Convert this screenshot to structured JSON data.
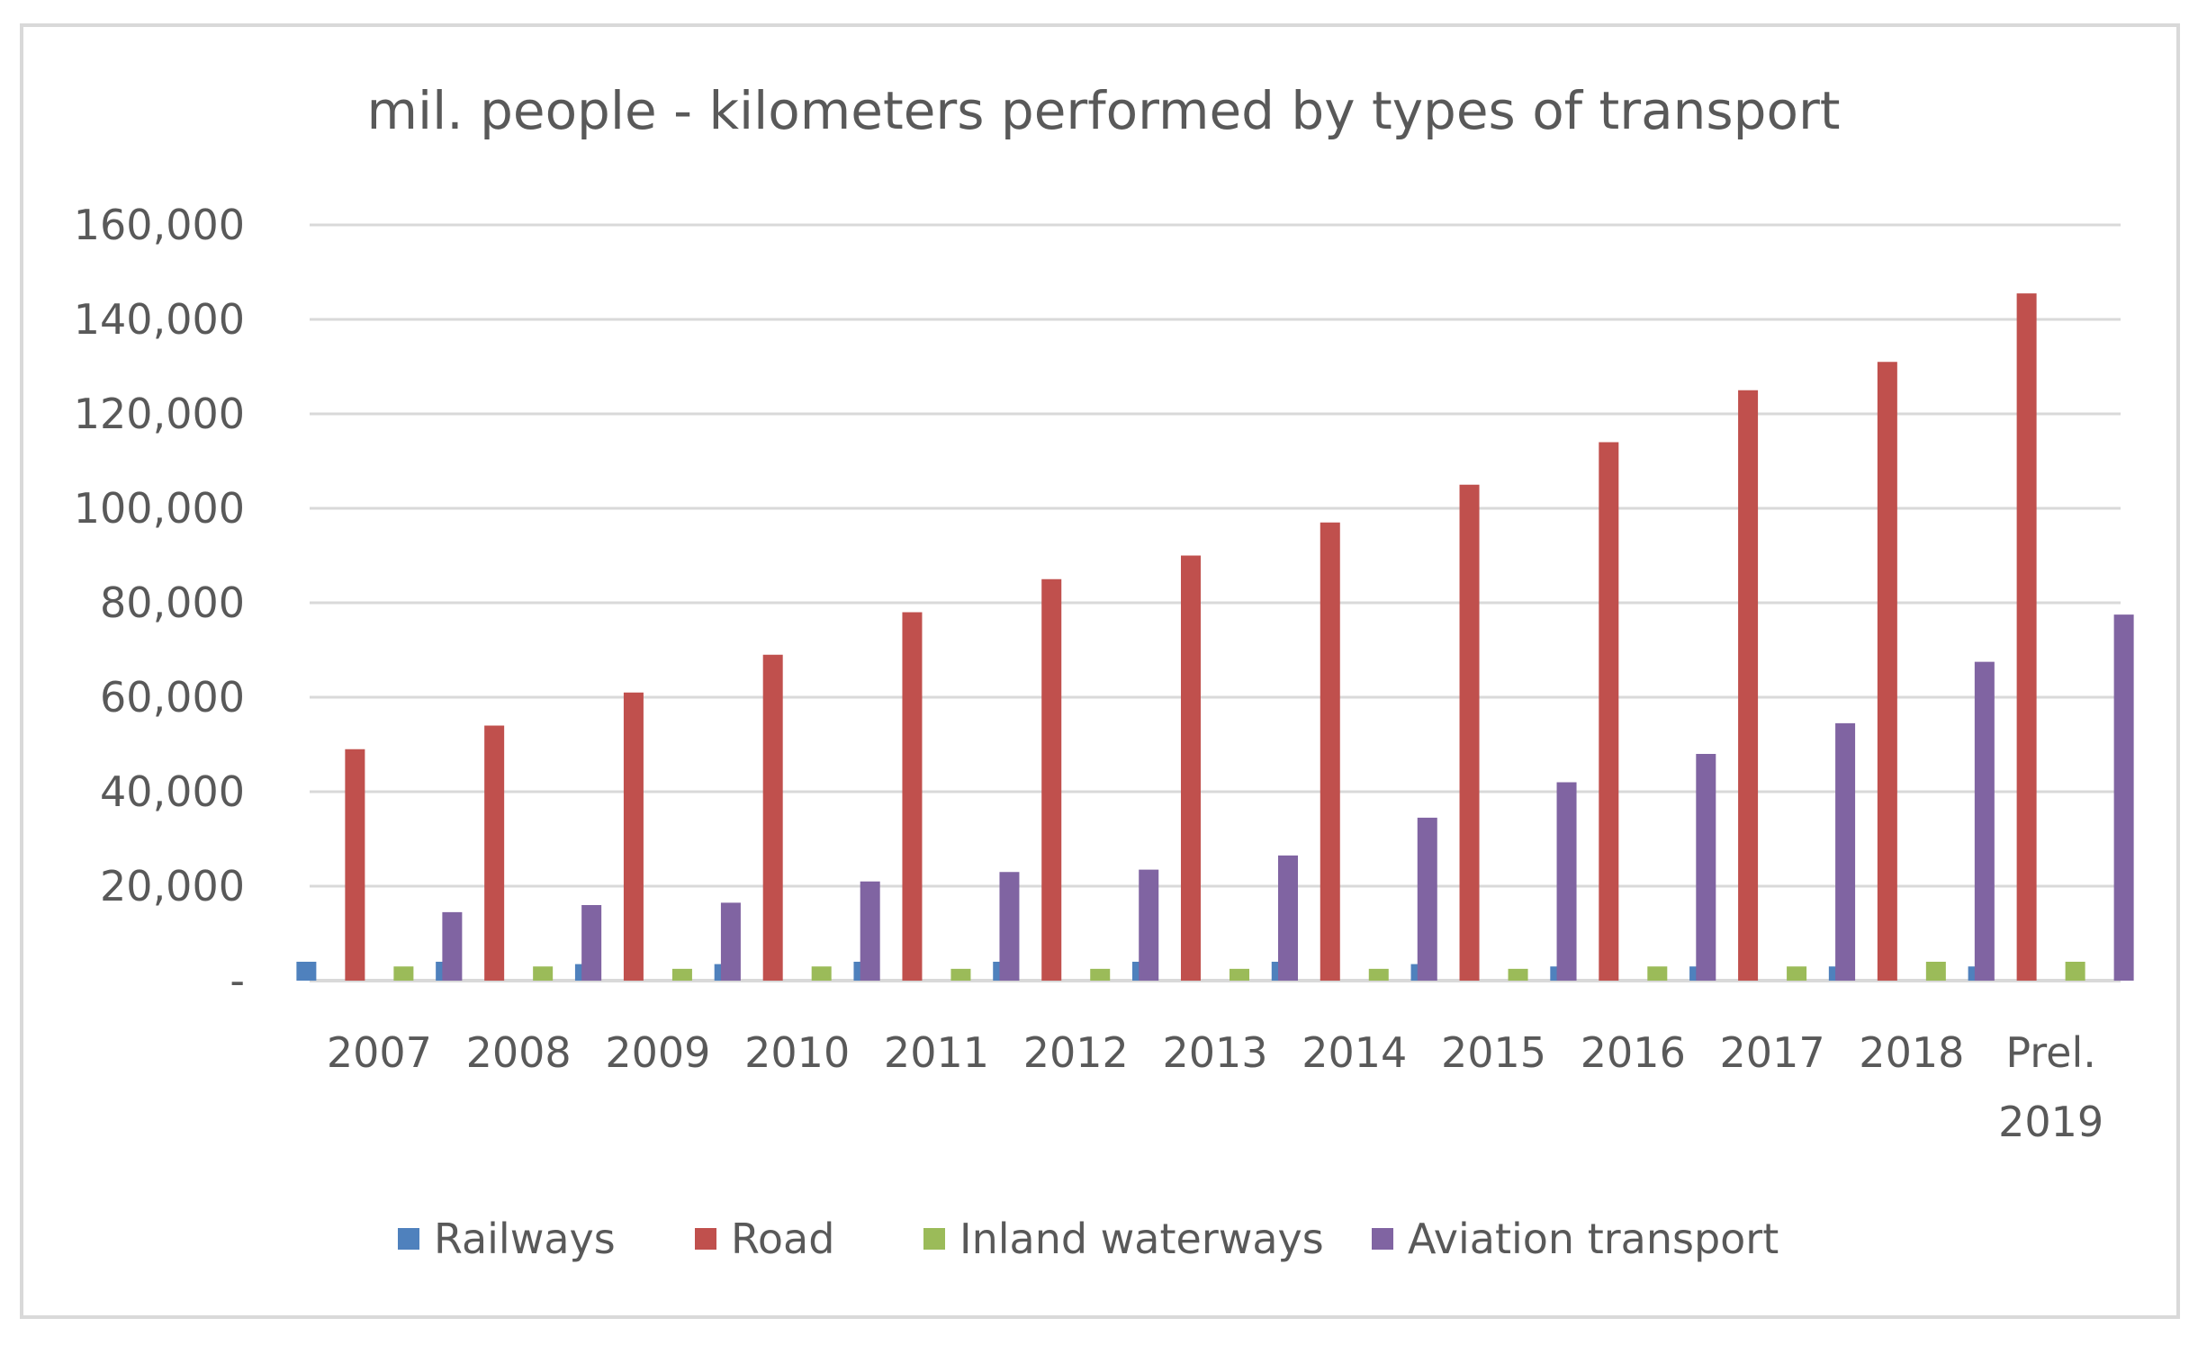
{
  "chart_data": {
    "type": "bar",
    "title": "mil. people - kilometers performed by types of transport",
    "xlabel": "",
    "ylabel": "",
    "ylim": [
      0,
      160000
    ],
    "yticks": [
      0,
      20000,
      40000,
      60000,
      80000,
      100000,
      120000,
      140000,
      160000
    ],
    "ytick_labels": [
      "-",
      "20,000",
      "40,000",
      "60,000",
      "80,000",
      "100,000",
      "120,000",
      "140,000",
      "160,000"
    ],
    "grid": true,
    "legend_position": "bottom",
    "categories": [
      [
        "2007"
      ],
      [
        "2008"
      ],
      [
        "2009"
      ],
      [
        "2010"
      ],
      [
        "2011"
      ],
      [
        "2012"
      ],
      [
        "2013"
      ],
      [
        "2014"
      ],
      [
        "2015"
      ],
      [
        "2016"
      ],
      [
        "2017"
      ],
      [
        "2018"
      ],
      [
        "Prel.",
        "2019"
      ]
    ],
    "series": [
      {
        "name": "Railways",
        "color": "#4f81bd",
        "values": [
          4000,
          4000,
          3500,
          3500,
          4000,
          4000,
          4000,
          4000,
          3500,
          3000,
          3000,
          3000,
          3000
        ]
      },
      {
        "name": "Road",
        "color": "#c0504d",
        "values": [
          49000,
          54000,
          61000,
          69000,
          78000,
          85000,
          90000,
          97000,
          105000,
          114000,
          125000,
          131000,
          145500
        ]
      },
      {
        "name": "Inland waterways",
        "color": "#9bbb59",
        "values": [
          3000,
          3000,
          2500,
          3000,
          2500,
          2500,
          2500,
          2500,
          2500,
          3000,
          3000,
          4000,
          4000
        ]
      },
      {
        "name": "Aviation transport",
        "color": "#8064a2",
        "values": [
          14500,
          16000,
          16500,
          21000,
          23000,
          23500,
          26500,
          34500,
          42000,
          48000,
          54500,
          67500,
          77500
        ]
      }
    ]
  }
}
